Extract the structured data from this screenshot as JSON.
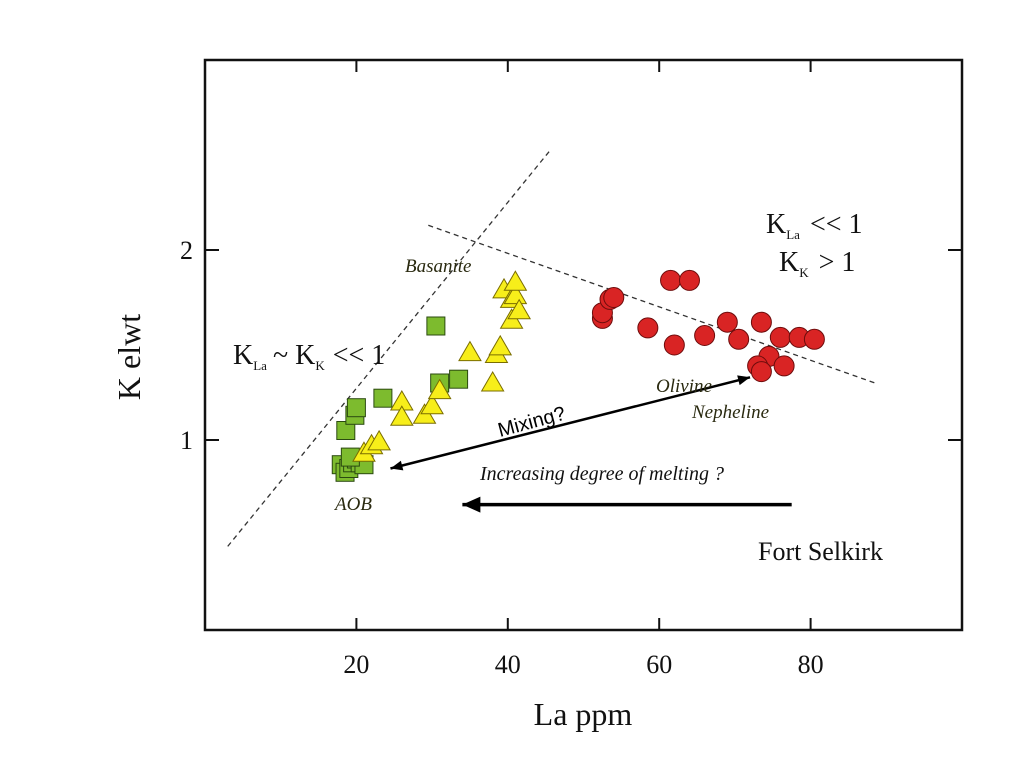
{
  "chart_data": {
    "type": "scatter",
    "title": "",
    "xlabel": "La ppm",
    "ylabel": "K elwt",
    "xlim": [
      0,
      100
    ],
    "ylim": [
      0,
      3
    ],
    "xticks": [
      20,
      40,
      60,
      80
    ],
    "xtick_labels": [
      "20",
      "40",
      "60",
      "80"
    ],
    "yticks": [
      1,
      2
    ],
    "ytick_labels": [
      "1",
      "2"
    ],
    "grid": false,
    "colors": {
      "aob": "#7dbb2e",
      "basanite": "#f7ee1a",
      "olivine_nephelinite": "#d92424",
      "dashed_line": "#333333",
      "arrow": "#000000"
    },
    "series": [
      {
        "marker": "square",
        "color": "#7dbb2e",
        "points": [
          [
            18.0,
            0.87
          ],
          [
            18.5,
            0.83
          ],
          [
            19.0,
            0.85
          ],
          [
            19.5,
            0.88
          ],
          [
            20.0,
            0.9
          ],
          [
            20.5,
            0.88
          ],
          [
            21.0,
            0.87
          ],
          [
            19.2,
            0.91
          ],
          [
            18.6,
            1.05
          ],
          [
            19.8,
            1.13
          ],
          [
            20.0,
            1.17
          ],
          [
            23.5,
            1.22
          ],
          [
            30.5,
            1.6
          ],
          [
            31.0,
            1.3
          ],
          [
            33.5,
            1.32
          ]
        ]
      },
      {
        "marker": "triangle",
        "color": "#f7ee1a",
        "points": [
          [
            21.0,
            0.93
          ],
          [
            22.0,
            0.97
          ],
          [
            23.0,
            0.99
          ],
          [
            26.0,
            1.2
          ],
          [
            26.0,
            1.12
          ],
          [
            29.0,
            1.13
          ],
          [
            30.0,
            1.18
          ],
          [
            31.0,
            1.26
          ],
          [
            35.0,
            1.46
          ],
          [
            38.0,
            1.3
          ],
          [
            38.5,
            1.45
          ],
          [
            39.0,
            1.49
          ],
          [
            39.5,
            1.79
          ],
          [
            40.5,
            1.63
          ],
          [
            40.5,
            1.74
          ],
          [
            41.0,
            1.76
          ],
          [
            41.5,
            1.68
          ],
          [
            41.0,
            1.83
          ]
        ]
      },
      {
        "marker": "circle",
        "color": "#d92424",
        "points": [
          [
            52.5,
            1.64
          ],
          [
            52.5,
            1.67
          ],
          [
            53.5,
            1.74
          ],
          [
            54.0,
            1.75
          ],
          [
            58.5,
            1.59
          ],
          [
            61.5,
            1.84
          ],
          [
            64.0,
            1.84
          ],
          [
            62.0,
            1.5
          ],
          [
            66.0,
            1.55
          ],
          [
            69.0,
            1.62
          ],
          [
            70.5,
            1.53
          ],
          [
            73.5,
            1.62
          ],
          [
            74.5,
            1.44
          ],
          [
            73.0,
            1.39
          ],
          [
            73.5,
            1.36
          ],
          [
            76.0,
            1.54
          ],
          [
            76.5,
            1.39
          ],
          [
            78.5,
            1.54
          ],
          [
            80.5,
            1.53
          ]
        ]
      }
    ],
    "dashed_lines": [
      {
        "from": [
          3,
          0.44
        ],
        "to": [
          45.5,
          2.52
        ]
      },
      {
        "from": [
          29.5,
          2.13
        ],
        "to": [
          88.5,
          1.3
        ]
      }
    ],
    "arrows": [
      {
        "label": "Mixing?",
        "double_headed": true,
        "from": [
          24.5,
          0.85
        ],
        "to": [
          72.0,
          1.33
        ]
      },
      {
        "label": "Increasing degree of melting ?",
        "double_headed": false,
        "from": [
          77.5,
          0.66
        ],
        "to": [
          34.0,
          0.66
        ]
      }
    ],
    "annotations": {
      "basanite": "Basanite",
      "aob": "AOB",
      "olivine": "Olivine",
      "nephelinite": "Nepheline",
      "upper_right_line1": {
        "k": "K",
        "sub": "La",
        "rel": "<< 1"
      },
      "upper_right_line2": {
        "k": "K",
        "sub": "K",
        "rel": "> 1"
      },
      "left": {
        "k1": "K",
        "sub1": "La",
        "mid": "~ K",
        "sub2": "K",
        "rel": "<< 1"
      },
      "mixing": "Mixing?",
      "melting": "Increasing degree of melting ?",
      "site": "Fort Selkirk"
    }
  }
}
